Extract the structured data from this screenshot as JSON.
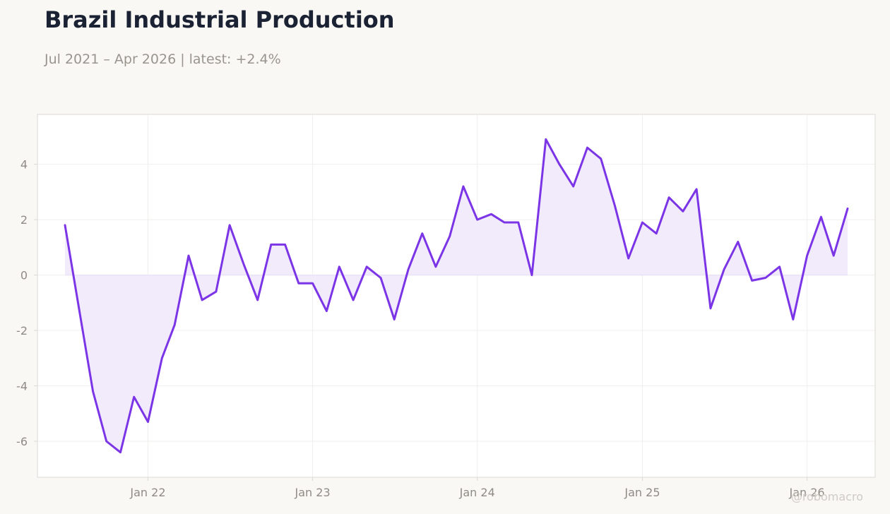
{
  "header": {
    "title": "Brazil Industrial Production",
    "subtitle": "Jul 2021 – Apr 2026 | latest: +2.4%"
  },
  "watermark": "@robomacro",
  "colors": {
    "line": "#7b35e6",
    "fill": "#f1ebfc",
    "grid": "#f0efed",
    "frame": "#dcdad5",
    "plot_bg": "#ffffff",
    "page_bg": "#f9f8f5"
  },
  "chart_data": {
    "type": "area",
    "title": "Brazil Industrial Production",
    "subtitle": "Jul 2021 – Apr 2026 | latest: +2.4%",
    "xlabel": "",
    "ylabel": "",
    "grid": true,
    "legend": "none",
    "ylim": [
      -7.3,
      5.8
    ],
    "xlim": [
      "2021-05-01",
      "2026-06-01"
    ],
    "y_ticks": [
      4,
      2,
      0,
      -2,
      -4,
      -6
    ],
    "x_ticks": [
      {
        "date": "2022-01-01",
        "label": "Jan 22"
      },
      {
        "date": "2023-01-01",
        "label": "Jan 23"
      },
      {
        "date": "2024-01-01",
        "label": "Jan 24"
      },
      {
        "date": "2025-01-01",
        "label": "Jan 25"
      },
      {
        "date": "2026-01-01",
        "label": "Jan 26"
      }
    ],
    "series": [
      {
        "x": [
          "2021-07-01",
          "2021-08-01",
          "2021-09-01",
          "2021-10-01",
          "2021-11-01",
          "2021-12-01",
          "2022-01-01",
          "2022-02-01",
          "2022-03-01",
          "2022-04-01",
          "2022-05-01",
          "2022-06-01",
          "2022-07-01",
          "2022-08-01",
          "2022-09-01",
          "2022-10-01",
          "2022-11-01",
          "2022-12-01",
          "2023-01-01",
          "2023-02-01",
          "2023-03-01",
          "2023-04-01",
          "2023-05-01",
          "2023-06-01",
          "2023-07-01",
          "2023-08-01",
          "2023-09-01",
          "2023-10-01",
          "2023-11-01",
          "2023-12-01",
          "2024-01-01",
          "2024-02-01",
          "2024-03-01",
          "2024-04-01",
          "2024-05-01",
          "2024-06-01",
          "2024-07-01",
          "2024-08-01",
          "2024-09-01",
          "2024-10-01",
          "2024-11-01",
          "2024-12-01",
          "2025-01-01",
          "2025-02-01",
          "2025-03-01",
          "2025-04-01",
          "2025-05-01",
          "2025-06-01",
          "2025-07-01",
          "2025-08-01",
          "2025-09-01",
          "2025-10-01",
          "2025-11-01",
          "2025-12-01",
          "2026-01-01",
          "2026-02-01",
          "2026-03-01",
          "2026-04-01"
        ],
        "values": [
          1.8,
          -1.2,
          -4.2,
          -6.0,
          -6.4,
          -4.4,
          -5.3,
          -3.0,
          -1.8,
          0.7,
          -0.9,
          -0.6,
          1.8,
          0.4,
          -0.9,
          1.1,
          1.1,
          -0.3,
          -0.3,
          -1.3,
          0.3,
          -0.9,
          0.3,
          -0.1,
          -1.6,
          0.2,
          1.5,
          0.3,
          1.4,
          3.2,
          2.0,
          2.2,
          1.9,
          1.9,
          0.0,
          4.9,
          4.0,
          3.2,
          4.6,
          4.2,
          2.5,
          0.6,
          1.9,
          1.5,
          2.8,
          2.3,
          3.1,
          -1.2,
          0.2,
          1.2,
          -0.2,
          -0.1,
          0.3,
          -1.6,
          0.7,
          2.1,
          0.7,
          2.4
        ]
      }
    ]
  }
}
